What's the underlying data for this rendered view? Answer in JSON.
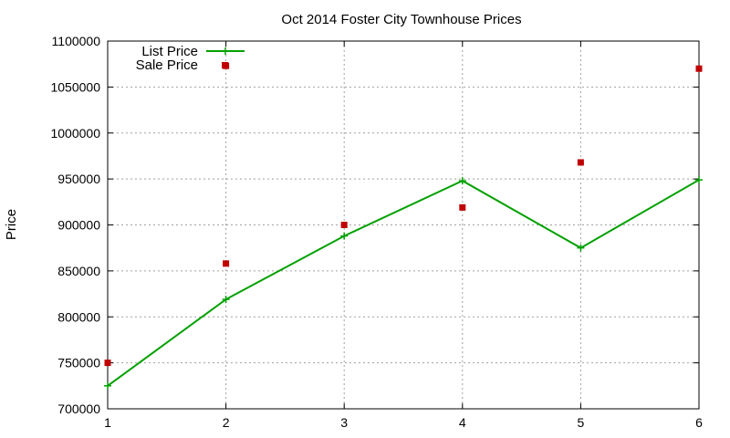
{
  "chart_data": {
    "type": "line",
    "title": "Oct 2014 Foster City Townhouse Prices",
    "xlabel": "",
    "ylabel": "Price",
    "x": [
      1,
      2,
      3,
      4,
      5,
      6
    ],
    "xlim": [
      1,
      6
    ],
    "ylim": [
      700000,
      1100000
    ],
    "xticks": [
      "1",
      "2",
      "3",
      "4",
      "5",
      "6"
    ],
    "yticks": [
      "700000",
      "750000",
      "800000",
      "850000",
      "900000",
      "950000",
      "1000000",
      "1050000",
      "1100000"
    ],
    "grid": true,
    "legend_position": "top-left",
    "series": [
      {
        "name": "List Price",
        "style": "linespoints",
        "color": "#00a000",
        "marker": "plus",
        "values": [
          725000,
          819000,
          888000,
          948000,
          875000,
          949000
        ]
      },
      {
        "name": "Sale Price",
        "style": "points",
        "color": "#c00000",
        "marker": "square",
        "values": [
          750000,
          858000,
          900000,
          919000,
          968000,
          1070000,
          1073000
        ],
        "x": [
          1,
          2,
          3,
          4,
          5,
          6,
          2
        ]
      }
    ]
  }
}
